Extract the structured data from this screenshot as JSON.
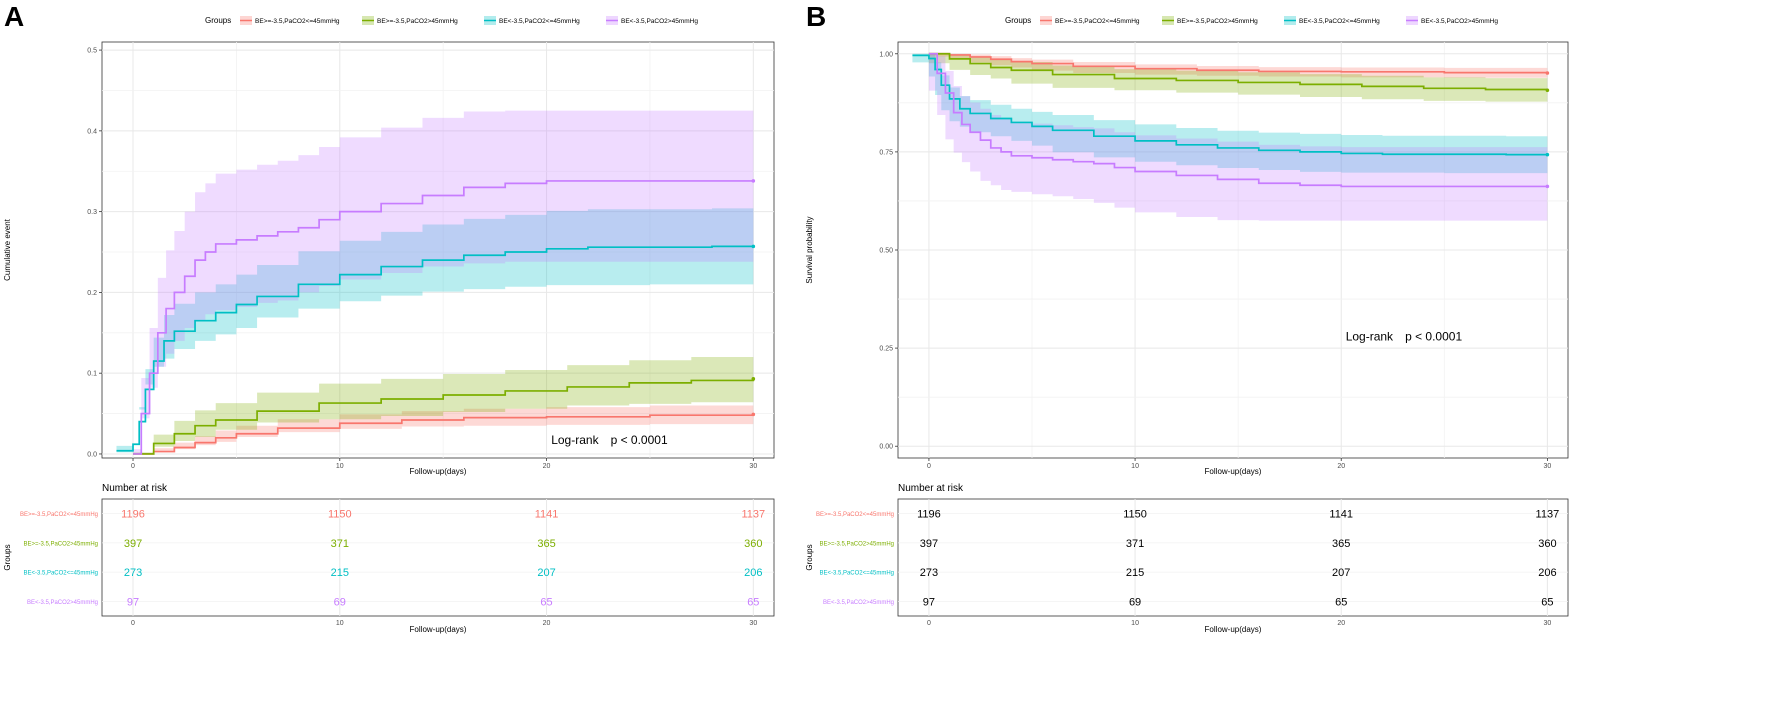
{
  "figure": {
    "panels": [
      {
        "letter": "A"
      },
      {
        "letter": "B"
      }
    ]
  },
  "colors": {
    "g1": "#F8766D",
    "g2": "#7CAE00",
    "g3": "#00BFC4",
    "g4": "#C77CFF",
    "grid": "#e8e8e8",
    "axis_text": "#4d4d4d"
  },
  "legend": {
    "title": "Groups",
    "entries": [
      "BE>=-3.5,PaCO2<=45mmHg",
      "BE>=-3.5,PaCO2>45mmHg",
      "BE<-3.5,PaCO2<=45mmHg",
      "BE<-3.5,PaCO2>45mmHg"
    ]
  },
  "chart_data": [
    {
      "type": "line",
      "panel": "A",
      "title": "",
      "xlabel": "Follow-up(days)",
      "ylabel": "Cumulative event",
      "xlim": [
        -1.5,
        31
      ],
      "ylim": [
        -0.005,
        0.51
      ],
      "xticks": [
        0,
        10,
        20,
        30
      ],
      "yticks": [
        0.0,
        0.1,
        0.2,
        0.3,
        0.4,
        0.5
      ],
      "yticklabels": [
        "0.0",
        "0.1",
        "0.2",
        "0.3",
        "0.4",
        "0.5"
      ],
      "annotation": {
        "label": "Log-rank",
        "pvalue": "p < 0.0001",
        "at": [
          23,
          0.017
        ]
      },
      "series": [
        {
          "name": "BE>=-3.5,PaCO2<=45mmHg",
          "x": [
            0,
            1,
            2,
            3,
            4,
            5,
            7,
            10,
            13,
            16,
            20,
            25,
            30
          ],
          "y": [
            0,
            0.003,
            0.008,
            0.014,
            0.02,
            0.025,
            0.032,
            0.038,
            0.042,
            0.045,
            0.046,
            0.048,
            0.049
          ],
          "lo": [
            0,
            0,
            0.002,
            0.006,
            0.011,
            0.015,
            0.021,
            0.027,
            0.031,
            0.034,
            0.035,
            0.036,
            0.037
          ],
          "hi": [
            0,
            0.007,
            0.014,
            0.022,
            0.029,
            0.035,
            0.043,
            0.049,
            0.053,
            0.056,
            0.058,
            0.06,
            0.061
          ]
        },
        {
          "name": "BE>=-3.5,PaCO2>45mmHg",
          "x": [
            0,
            1,
            2,
            3,
            4,
            6,
            9,
            12,
            15,
            18,
            21,
            24,
            27,
            30
          ],
          "y": [
            0,
            0.013,
            0.025,
            0.035,
            0.042,
            0.053,
            0.063,
            0.068,
            0.073,
            0.078,
            0.083,
            0.088,
            0.091,
            0.093
          ],
          "lo": [
            0,
            0.002,
            0.009,
            0.016,
            0.021,
            0.03,
            0.039,
            0.043,
            0.047,
            0.052,
            0.056,
            0.06,
            0.062,
            0.064
          ],
          "hi": [
            0,
            0.024,
            0.041,
            0.054,
            0.063,
            0.076,
            0.087,
            0.093,
            0.099,
            0.104,
            0.11,
            0.116,
            0.12,
            0.122
          ]
        },
        {
          "name": "BE<-3.5,PaCO2<=45mmHg",
          "x": [
            -0.8,
            0,
            0.3,
            0.6,
            1,
            1.5,
            2,
            3,
            4,
            5,
            6,
            8,
            10,
            12,
            14,
            16,
            18,
            20,
            22,
            25,
            28,
            30
          ],
          "y": [
            0.004,
            0.012,
            0.04,
            0.08,
            0.115,
            0.14,
            0.152,
            0.165,
            0.175,
            0.185,
            0.195,
            0.21,
            0.222,
            0.232,
            0.24,
            0.246,
            0.25,
            0.254,
            0.256,
            0.256,
            0.257,
            0.257
          ],
          "lo": [
            0,
            0.002,
            0.022,
            0.055,
            0.086,
            0.108,
            0.118,
            0.13,
            0.14,
            0.148,
            0.156,
            0.169,
            0.18,
            0.189,
            0.196,
            0.201,
            0.204,
            0.207,
            0.209,
            0.209,
            0.21,
            0.21
          ],
          "hi": [
            0.01,
            0.022,
            0.058,
            0.105,
            0.144,
            0.172,
            0.186,
            0.2,
            0.21,
            0.222,
            0.234,
            0.251,
            0.264,
            0.275,
            0.284,
            0.291,
            0.296,
            0.301,
            0.303,
            0.303,
            0.304,
            0.304
          ]
        },
        {
          "name": "BE<-3.5,PaCO2>45mmHg",
          "x": [
            0,
            0.4,
            0.8,
            1.2,
            1.6,
            2,
            2.5,
            3,
            3.5,
            4,
            5,
            6,
            7,
            8,
            9,
            10,
            12,
            14,
            16,
            18,
            20,
            22,
            25,
            30
          ],
          "y": [
            0,
            0.05,
            0.1,
            0.15,
            0.18,
            0.2,
            0.22,
            0.24,
            0.25,
            0.26,
            0.265,
            0.27,
            0.275,
            0.28,
            0.29,
            0.3,
            0.31,
            0.32,
            0.33,
            0.335,
            0.338,
            0.338,
            0.338,
            0.338
          ],
          "lo": [
            0,
            0.006,
            0.044,
            0.082,
            0.108,
            0.124,
            0.14,
            0.156,
            0.165,
            0.173,
            0.178,
            0.182,
            0.187,
            0.19,
            0.2,
            0.208,
            0.216,
            0.224,
            0.232,
            0.236,
            0.238,
            0.238,
            0.238,
            0.238
          ],
          "hi": [
            0,
            0.094,
            0.156,
            0.218,
            0.252,
            0.276,
            0.3,
            0.324,
            0.335,
            0.347,
            0.352,
            0.358,
            0.363,
            0.37,
            0.38,
            0.392,
            0.404,
            0.416,
            0.424,
            0.425,
            0.425,
            0.425,
            0.425,
            0.425
          ]
        }
      ]
    },
    {
      "type": "line",
      "panel": "B",
      "title": "",
      "xlabel": "Follow-up(days)",
      "ylabel": "Survival probability",
      "xlim": [
        -1.5,
        31
      ],
      "ylim": [
        -0.03,
        1.03
      ],
      "xticks": [
        0,
        10,
        20,
        30
      ],
      "yticks": [
        0.0,
        0.25,
        0.5,
        0.75,
        1.0
      ],
      "yticklabels": [
        "0.00",
        "0.25",
        "0.50",
        "0.75",
        "1.00"
      ],
      "annotation": {
        "label": "Log-rank",
        "pvalue": "p < 0.0001",
        "at": [
          23,
          0.28
        ]
      },
      "series": [
        {
          "name": "BE>=-3.5,PaCO2<=45mmHg",
          "x": [
            0,
            1,
            2,
            3,
            4,
            5,
            7,
            10,
            13,
            16,
            20,
            25,
            30
          ],
          "y": [
            1.0,
            0.997,
            0.992,
            0.986,
            0.98,
            0.975,
            0.968,
            0.962,
            0.958,
            0.955,
            0.954,
            0.952,
            0.951
          ],
          "lo": [
            1.0,
            0.993,
            0.986,
            0.978,
            0.971,
            0.965,
            0.957,
            0.951,
            0.947,
            0.944,
            0.942,
            0.94,
            0.939
          ],
          "hi": [
            1.0,
            1.0,
            0.998,
            0.994,
            0.989,
            0.985,
            0.979,
            0.973,
            0.969,
            0.966,
            0.965,
            0.964,
            0.963
          ]
        },
        {
          "name": "BE>=-3.5,PaCO2>45mmHg",
          "x": [
            0,
            1,
            2,
            3,
            4,
            6,
            9,
            12,
            15,
            18,
            21,
            24,
            27,
            30
          ],
          "y": [
            1.0,
            0.987,
            0.975,
            0.965,
            0.958,
            0.947,
            0.937,
            0.932,
            0.927,
            0.922,
            0.917,
            0.912,
            0.909,
            0.907
          ],
          "lo": [
            1.0,
            0.976,
            0.959,
            0.946,
            0.937,
            0.924,
            0.913,
            0.907,
            0.901,
            0.896,
            0.89,
            0.884,
            0.88,
            0.878
          ],
          "hi": [
            1.0,
            0.998,
            0.991,
            0.984,
            0.979,
            0.97,
            0.961,
            0.957,
            0.953,
            0.948,
            0.944,
            0.94,
            0.938,
            0.936
          ]
        },
        {
          "name": "BE<-3.5,PaCO2<=45mmHg",
          "x": [
            -0.8,
            0,
            0.3,
            0.6,
            1,
            1.5,
            2,
            3,
            4,
            5,
            6,
            8,
            10,
            12,
            14,
            16,
            18,
            20,
            22,
            25,
            28,
            30
          ],
          "y": [
            0.996,
            0.988,
            0.96,
            0.92,
            0.885,
            0.86,
            0.848,
            0.835,
            0.825,
            0.815,
            0.805,
            0.79,
            0.778,
            0.768,
            0.76,
            0.754,
            0.75,
            0.746,
            0.744,
            0.744,
            0.743,
            0.743
          ],
          "lo": [
            0.99,
            0.978,
            0.942,
            0.895,
            0.856,
            0.828,
            0.814,
            0.8,
            0.79,
            0.778,
            0.766,
            0.749,
            0.736,
            0.725,
            0.716,
            0.709,
            0.704,
            0.699,
            0.697,
            0.697,
            0.696,
            0.696
          ],
          "hi": [
            1.0,
            0.998,
            0.978,
            0.945,
            0.914,
            0.892,
            0.882,
            0.87,
            0.86,
            0.852,
            0.844,
            0.831,
            0.82,
            0.811,
            0.804,
            0.799,
            0.796,
            0.793,
            0.791,
            0.791,
            0.79,
            0.79
          ]
        },
        {
          "name": "BE<-3.5,PaCO2>45mmHg",
          "x": [
            0,
            0.4,
            0.8,
            1.2,
            1.6,
            2,
            2.5,
            3,
            3.5,
            4,
            5,
            6,
            7,
            8,
            9,
            10,
            12,
            14,
            16,
            18,
            20,
            22,
            25,
            30
          ],
          "y": [
            1.0,
            0.95,
            0.9,
            0.85,
            0.82,
            0.8,
            0.78,
            0.76,
            0.75,
            0.74,
            0.735,
            0.73,
            0.725,
            0.72,
            0.71,
            0.7,
            0.69,
            0.68,
            0.67,
            0.665,
            0.662,
            0.662,
            0.662,
            0.662
          ],
          "lo": [
            1.0,
            0.906,
            0.844,
            0.782,
            0.748,
            0.724,
            0.7,
            0.676,
            0.665,
            0.653,
            0.648,
            0.642,
            0.637,
            0.63,
            0.62,
            0.608,
            0.596,
            0.584,
            0.576,
            0.575,
            0.575,
            0.575,
            0.575,
            0.575
          ],
          "hi": [
            1.0,
            0.994,
            0.956,
            0.918,
            0.892,
            0.876,
            0.86,
            0.844,
            0.835,
            0.827,
            0.822,
            0.818,
            0.813,
            0.81,
            0.8,
            0.792,
            0.784,
            0.776,
            0.768,
            0.764,
            0.762,
            0.762,
            0.762,
            0.762
          ]
        }
      ]
    }
  ],
  "risk_table": {
    "title": "Number at risk",
    "ylabel": "Groups",
    "xlabel": "Follow-up(days)",
    "times": [
      0,
      10,
      20,
      30
    ],
    "rows": [
      {
        "label": "BE>=-3.5,PaCO2<=45mmHg",
        "counts": [
          "1196",
          "1150",
          "1141",
          "1137"
        ]
      },
      {
        "label": "BE>=-3.5,PaCO2>45mmHg",
        "counts": [
          "397",
          "371",
          "365",
          "360"
        ]
      },
      {
        "label": "BE<-3.5,PaCO2<=45mmHg",
        "counts": [
          "273",
          "215",
          "207",
          "206"
        ]
      },
      {
        "label": "BE<-3.5,PaCO2>45mmHg",
        "counts": [
          "97",
          "69",
          "65",
          "65"
        ]
      }
    ]
  }
}
